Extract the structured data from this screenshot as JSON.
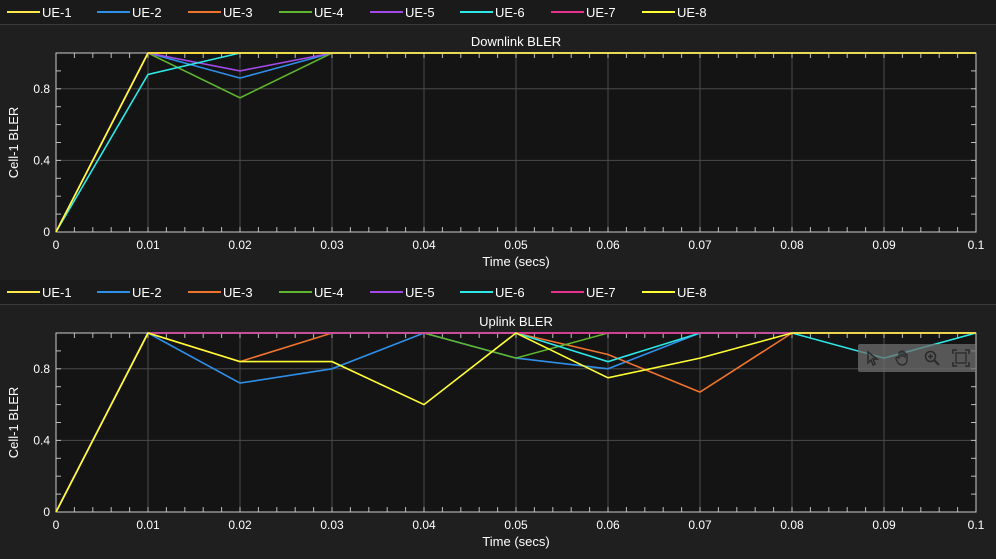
{
  "colors": {
    "UE-1": "#fde74c",
    "UE-2": "#2f8fe8",
    "UE-3": "#f0742f",
    "UE-4": "#5fb52e",
    "UE-5": "#a24ae8",
    "UE-6": "#2ee8e8",
    "UE-7": "#e8318f",
    "UE-8": "#ffff35",
    "background": "#1f1f1f",
    "plot_background": "#141414",
    "grid": "#4a4a4a"
  },
  "legend": [
    "UE-1",
    "UE-2",
    "UE-3",
    "UE-4",
    "UE-5",
    "UE-6",
    "UE-7",
    "UE-8"
  ],
  "toolbar": {
    "icons": [
      "data-cursor-icon",
      "pan-icon",
      "zoom-in-icon",
      "restore-view-icon"
    ]
  },
  "chart_data": [
    {
      "type": "line",
      "title": "Downlink BLER",
      "xlabel": "Time (secs)",
      "ylabel": "Cell-1 BLER",
      "xlim": [
        0,
        0.1
      ],
      "ylim": [
        0,
        1
      ],
      "xticks": [
        "0",
        "0.01",
        "0.02",
        "0.03",
        "0.04",
        "0.05",
        "0.06",
        "0.07",
        "0.08",
        "0.09",
        "0.1"
      ],
      "yticks": [
        "0",
        "0.4",
        "0.8"
      ],
      "grid": true,
      "legend_position": "top",
      "x": [
        0,
        0.01,
        0.02,
        0.03,
        0.04,
        0.05,
        0.06,
        0.07,
        0.08,
        0.09,
        0.1
      ],
      "series": [
        {
          "name": "UE-1",
          "values": [
            0,
            1,
            1,
            1,
            1,
            1,
            1,
            1,
            1,
            1,
            1
          ]
        },
        {
          "name": "UE-2",
          "values": [
            0,
            1,
            0.86,
            1,
            1,
            1,
            1,
            1,
            1,
            1,
            1
          ]
        },
        {
          "name": "UE-3",
          "values": [
            0,
            1,
            1,
            1,
            1,
            1,
            1,
            1,
            1,
            1,
            1
          ]
        },
        {
          "name": "UE-4",
          "values": [
            0,
            1,
            0.75,
            1,
            1,
            1,
            1,
            1,
            1,
            1,
            1
          ]
        },
        {
          "name": "UE-5",
          "values": [
            0,
            1,
            0.9,
            1,
            1,
            1,
            1,
            1,
            1,
            1,
            1
          ]
        },
        {
          "name": "UE-6",
          "values": [
            0,
            0.88,
            1,
            1,
            1,
            1,
            1,
            1,
            1,
            1,
            1
          ]
        },
        {
          "name": "UE-7",
          "values": [
            0,
            1,
            1,
            1,
            1,
            1,
            1,
            1,
            1,
            1,
            1
          ]
        },
        {
          "name": "UE-8",
          "values": [
            0,
            1,
            1,
            1,
            1,
            1,
            1,
            1,
            1,
            1,
            1
          ]
        }
      ]
    },
    {
      "type": "line",
      "title": "Uplink BLER",
      "xlabel": "Time (secs)",
      "ylabel": "Cell-1 BLER",
      "xlim": [
        0,
        0.1
      ],
      "ylim": [
        0,
        1
      ],
      "xticks": [
        "0",
        "0.01",
        "0.02",
        "0.03",
        "0.04",
        "0.05",
        "0.06",
        "0.07",
        "0.08",
        "0.09",
        "0.1"
      ],
      "yticks": [
        "0",
        "0.4",
        "0.8"
      ],
      "grid": true,
      "legend_position": "top",
      "x": [
        0,
        0.01,
        0.02,
        0.03,
        0.04,
        0.05,
        0.06,
        0.07,
        0.08,
        0.09,
        0.1
      ],
      "series": [
        {
          "name": "UE-1",
          "values": [
            0,
            1,
            1,
            1,
            1,
            1,
            1,
            1,
            1,
            1,
            1
          ]
        },
        {
          "name": "UE-2",
          "values": [
            0,
            1,
            0.72,
            0.8,
            1,
            0.86,
            0.8,
            1,
            1,
            1,
            1
          ]
        },
        {
          "name": "UE-3",
          "values": [
            0,
            1,
            0.84,
            1,
            1,
            1,
            0.88,
            0.67,
            1,
            1,
            1
          ]
        },
        {
          "name": "UE-4",
          "values": [
            0,
            1,
            1,
            1,
            1,
            0.86,
            1,
            1,
            1,
            1,
            1
          ]
        },
        {
          "name": "UE-5",
          "values": [
            0,
            1,
            1,
            1,
            1,
            1,
            1,
            1,
            1,
            1,
            1
          ]
        },
        {
          "name": "UE-6",
          "values": [
            0,
            1,
            1,
            1,
            1,
            1,
            0.84,
            1,
            1,
            0.86,
            1
          ]
        },
        {
          "name": "UE-7",
          "values": [
            0,
            1,
            1,
            1,
            1,
            1,
            1,
            1,
            1,
            1,
            1
          ]
        },
        {
          "name": "UE-8",
          "values": [
            0,
            1,
            0.84,
            0.84,
            0.6,
            1,
            0.75,
            0.86,
            1,
            1,
            1
          ]
        }
      ]
    }
  ]
}
